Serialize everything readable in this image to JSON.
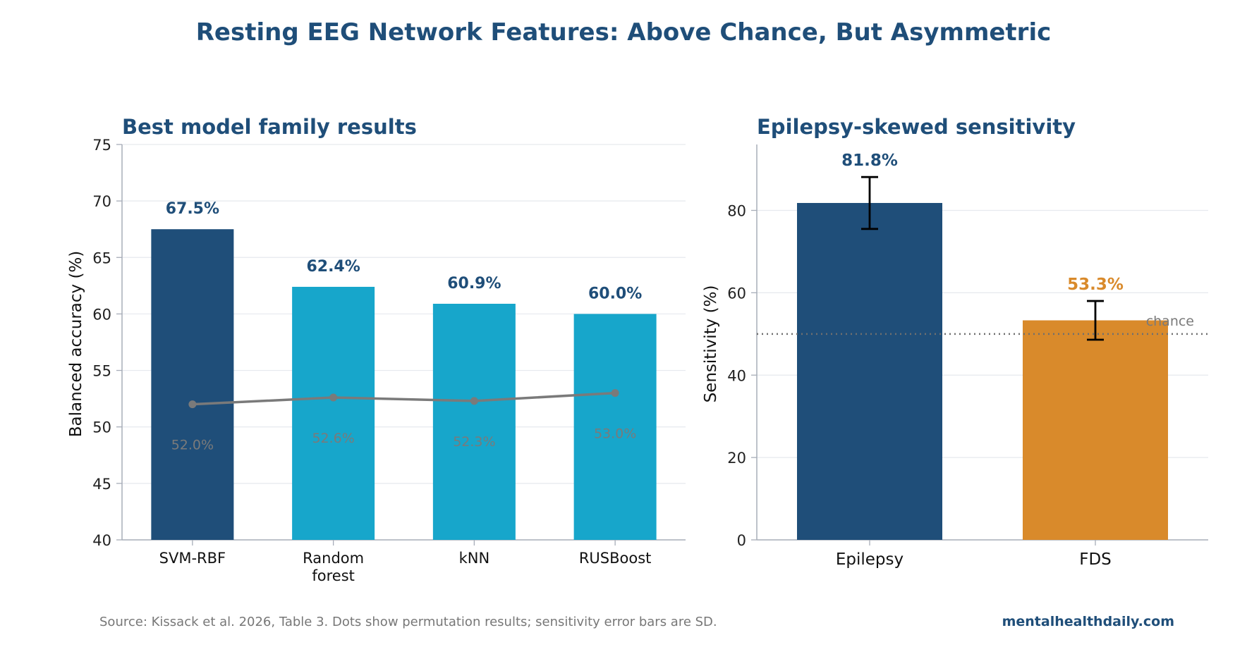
{
  "title": "Resting EEG Network Features: Above Chance, But Asymmetric",
  "source": "Source: Kissack et al. 2026, Table 3. Dots show permutation results; sensitivity error bars are SD.",
  "brand": "mentalhealthdaily.com",
  "colors": {
    "title": "#1f4e79",
    "dark_blue": "#1f4e79",
    "light_blue": "#17a6cb",
    "orange": "#d98a2b",
    "permutation": "#7a7a7a",
    "grid": "#e6e9ee",
    "axis": "#a7adb8"
  },
  "chart_data": [
    {
      "type": "bar",
      "title": "Best model family results",
      "ylabel": "Balanced accuracy (%)",
      "xlabel": "",
      "ylim": [
        40,
        75
      ],
      "yticks": [
        40,
        45,
        50,
        55,
        60,
        65,
        70,
        75
      ],
      "grid": true,
      "categories": [
        "SVM-RBF",
        "Random\nforest",
        "kNN",
        "RUSBoost"
      ],
      "values": [
        67.5,
        62.4,
        60.9,
        60.0
      ],
      "value_labels": [
        "67.5%",
        "62.4%",
        "60.9%",
        "60.0%"
      ],
      "bar_colors": [
        "#1f4e79",
        "#17a6cb",
        "#17a6cb",
        "#17a6cb"
      ],
      "overlay_line": {
        "values": [
          52.0,
          52.6,
          52.3,
          53.0
        ],
        "labels": [
          "52.0%",
          "52.6%",
          "52.3%",
          "53.0%"
        ]
      }
    },
    {
      "type": "bar",
      "title": "Epilepsy-skewed sensitivity",
      "ylabel": "Sensitivity (%)",
      "xlabel": "",
      "ylim": [
        0,
        96
      ],
      "yticks": [
        0,
        20,
        40,
        60,
        80
      ],
      "grid": true,
      "categories": [
        "Epilepsy",
        "FDS"
      ],
      "values": [
        81.8,
        53.3
      ],
      "value_labels": [
        "81.8%",
        "53.3%"
      ],
      "bar_colors": [
        "#1f4e79",
        "#d98a2b"
      ],
      "label_colors": [
        "#1f4e79",
        "#d98a2b"
      ],
      "error_sd": [
        6.3,
        4.7
      ],
      "reference_line": {
        "value": 50,
        "label": "chance"
      }
    }
  ]
}
